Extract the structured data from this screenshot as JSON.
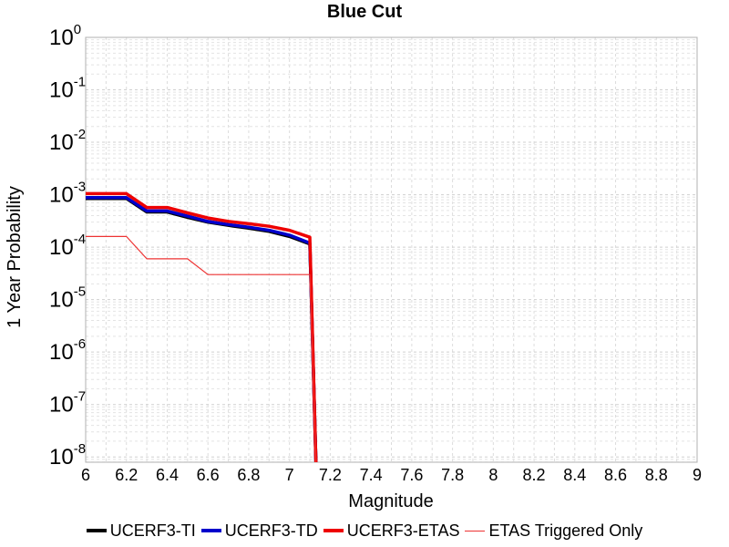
{
  "chart_data": {
    "type": "line",
    "title": "Blue Cut",
    "xlabel": "Magnitude",
    "ylabel": "1 Year Probability",
    "xlim": [
      6,
      9
    ],
    "ylim_log10": [
      -8.1,
      0
    ],
    "y_scale": "log",
    "grid": true,
    "legend_position": "bottom",
    "x_ticks": [
      "6",
      "6.2",
      "6.4",
      "6.6",
      "6.8",
      "7",
      "7.2",
      "7.4",
      "7.6",
      "7.8",
      "8",
      "8.2",
      "8.4",
      "8.6",
      "8.8",
      "9"
    ],
    "y_ticks": [
      {
        "base": "10",
        "exp": "0"
      },
      {
        "base": "10",
        "exp": "-1"
      },
      {
        "base": "10",
        "exp": "-2"
      },
      {
        "base": "10",
        "exp": "-3"
      },
      {
        "base": "10",
        "exp": "-4"
      },
      {
        "base": "10",
        "exp": "-5"
      },
      {
        "base": "10",
        "exp": "-6"
      },
      {
        "base": "10",
        "exp": "-7"
      },
      {
        "base": "10",
        "exp": "-8"
      }
    ],
    "series": [
      {
        "name": "UCERF3-TI",
        "color": "#000000",
        "width": "thick",
        "points": [
          [
            6.0,
            0.00085
          ],
          [
            6.2,
            0.00085
          ],
          [
            6.3,
            0.00047
          ],
          [
            6.4,
            0.00047
          ],
          [
            6.5,
            0.00037
          ],
          [
            6.6,
            0.0003
          ],
          [
            6.7,
            0.00026
          ],
          [
            6.8,
            0.00023
          ],
          [
            6.9,
            0.0002
          ],
          [
            7.0,
            0.00016
          ],
          [
            7.1,
            0.000115
          ],
          [
            7.13,
            1e-11
          ]
        ]
      },
      {
        "name": "UCERF3-TD",
        "color": "#0000cc",
        "width": "thick",
        "points": [
          [
            6.0,
            0.00088
          ],
          [
            6.2,
            0.00088
          ],
          [
            6.3,
            0.00049
          ],
          [
            6.4,
            0.00049
          ],
          [
            6.5,
            0.00039
          ],
          [
            6.6,
            0.00031
          ],
          [
            6.7,
            0.00027
          ],
          [
            6.8,
            0.00024
          ],
          [
            6.9,
            0.00021
          ],
          [
            7.0,
            0.00017
          ],
          [
            7.1,
            0.00012
          ],
          [
            7.13,
            1e-11
          ]
        ]
      },
      {
        "name": "UCERF3-ETAS",
        "color": "#ee0000",
        "width": "thick",
        "points": [
          [
            6.0,
            0.00105
          ],
          [
            6.2,
            0.00105
          ],
          [
            6.3,
            0.00057
          ],
          [
            6.4,
            0.00057
          ],
          [
            6.5,
            0.00045
          ],
          [
            6.6,
            0.00036
          ],
          [
            6.7,
            0.00031
          ],
          [
            6.8,
            0.00028
          ],
          [
            6.9,
            0.00025
          ],
          [
            7.0,
            0.00021
          ],
          [
            7.1,
            0.000155
          ],
          [
            7.13,
            1e-11
          ]
        ]
      },
      {
        "name": "ETAS Triggered Only",
        "color": "#ee3333",
        "width": "thin",
        "points": [
          [
            6.0,
            0.00016
          ],
          [
            6.2,
            0.00016
          ],
          [
            6.3,
            6e-05
          ],
          [
            6.5,
            6e-05
          ],
          [
            6.6,
            3e-05
          ],
          [
            7.1,
            3e-05
          ],
          [
            7.13,
            1e-11
          ]
        ]
      }
    ]
  }
}
